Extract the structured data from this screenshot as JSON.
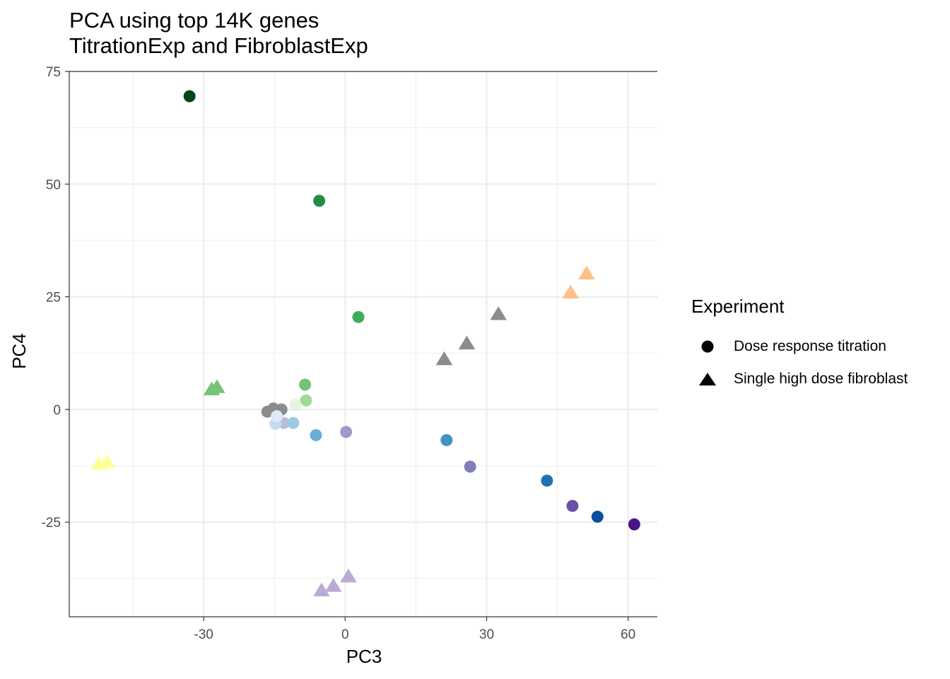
{
  "chart_data": {
    "type": "scatter",
    "title": "PCA using top 14K genes",
    "subtitle": "TitrationExp and FibroblastExp",
    "xlabel": "PC3",
    "ylabel": "PC4",
    "xlim": [
      -58.5,
      66.5
    ],
    "ylim": [
      -46,
      75
    ],
    "x_ticks": [
      -30,
      0,
      30,
      60
    ],
    "y_ticks": [
      -25,
      0,
      25,
      50,
      75
    ],
    "x_tick_labels": [
      "-30",
      "0",
      "30",
      "60"
    ],
    "y_tick_labels": [
      "-25",
      "0",
      "25",
      "50",
      "75"
    ],
    "grid": true,
    "legend": {
      "title": "Experiment",
      "position": "right",
      "entries": [
        {
          "label": "Dose response titration",
          "shape": "circle"
        },
        {
          "label": "Single high dose fibroblast",
          "shape": "triangle"
        }
      ]
    },
    "series": [
      {
        "name": "Dose response titration",
        "shape": "circle",
        "points": [
          {
            "x": -33,
            "y": 69.5,
            "color": "#00441b"
          },
          {
            "x": -5.5,
            "y": 46.3,
            "color": "#238b45"
          },
          {
            "x": 2.8,
            "y": 20.5,
            "color": "#41ab5d"
          },
          {
            "x": -8.5,
            "y": 5.5,
            "color": "#74c476"
          },
          {
            "x": -8.3,
            "y": 2.0,
            "color": "#a1d99b"
          },
          {
            "x": -16.5,
            "y": -0.5,
            "color": "#8c8c8c"
          },
          {
            "x": -15.2,
            "y": 0.2,
            "color": "#8c8c8c"
          },
          {
            "x": -13.5,
            "y": 0.0,
            "color": "#8c8c8c"
          },
          {
            "x": -10.5,
            "y": 1.0,
            "color": "#e5f5e0"
          },
          {
            "x": -13.0,
            "y": -3.0,
            "color": "#bcbddc"
          },
          {
            "x": -14.8,
            "y": -3.2,
            "color": "#c6dbef"
          },
          {
            "x": -14.5,
            "y": -1.5,
            "color": "#deebf7"
          },
          {
            "x": -11.0,
            "y": -3.0,
            "color": "#9ecae1"
          },
          {
            "x": -6.2,
            "y": -5.7,
            "color": "#6baed6"
          },
          {
            "x": 0.2,
            "y": -5.0,
            "color": "#9e9ac8"
          },
          {
            "x": 21.5,
            "y": -6.8,
            "color": "#4292c6"
          },
          {
            "x": 26.5,
            "y": -12.7,
            "color": "#807dba"
          },
          {
            "x": 42.8,
            "y": -15.8,
            "color": "#2171b5"
          },
          {
            "x": 48.2,
            "y": -21.4,
            "color": "#6a51a3"
          },
          {
            "x": 53.5,
            "y": -23.8,
            "color": "#08519c"
          },
          {
            "x": 61.3,
            "y": -25.5,
            "color": "#4a1486"
          }
        ]
      },
      {
        "name": "Single high dose fibroblast",
        "shape": "triangle",
        "points": [
          {
            "x": -28.3,
            "y": 4.3,
            "color": "#74c476"
          },
          {
            "x": -27.2,
            "y": 4.8,
            "color": "#74c476"
          },
          {
            "x": -52.2,
            "y": -12.2,
            "color": "#ffff99"
          },
          {
            "x": -50.5,
            "y": -11.8,
            "color": "#ffff99"
          },
          {
            "x": 51.2,
            "y": 30.0,
            "color": "#fdc086"
          },
          {
            "x": 47.8,
            "y": 25.8,
            "color": "#fdc086"
          },
          {
            "x": 32.5,
            "y": 21.0,
            "color": "#8c8c8c"
          },
          {
            "x": 25.8,
            "y": 14.5,
            "color": "#8c8c8c"
          },
          {
            "x": 21.0,
            "y": 11.0,
            "color": "#8c8c8c"
          },
          {
            "x": -5.0,
            "y": -40.3,
            "color": "#bcaad6"
          },
          {
            "x": -2.5,
            "y": -39.3,
            "color": "#bcaad6"
          },
          {
            "x": 0.7,
            "y": -37.2,
            "color": "#bcaad6"
          }
        ]
      }
    ]
  }
}
